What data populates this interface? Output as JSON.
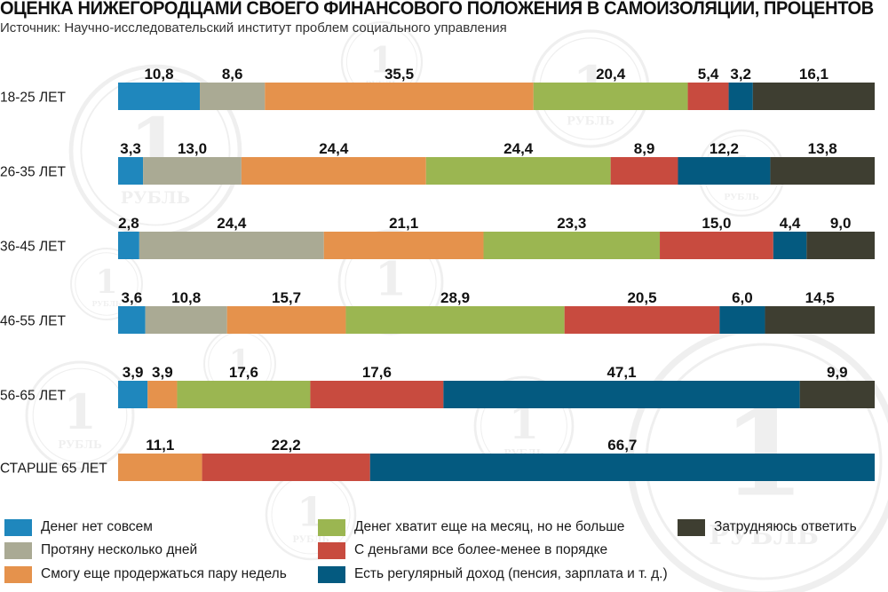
{
  "title": "ОЦЕНКА НИЖЕГОРОДЦАМИ СВОЕГО ФИНАНСОВОГО ПОЛОЖЕНИЯ В САМОИЗОЛЯЦИИ, ПРОЦЕНТОВ",
  "subtitle": "Источник: Научно-исследовательский институт проблем социального управления",
  "watermark": {
    "numeral": "1",
    "word": "РУБЛЬ"
  },
  "chart_data": {
    "type": "bar",
    "orientation": "horizontal",
    "stacked": true,
    "categories": [
      "18-25 ЛЕТ",
      "26-35 ЛЕТ",
      "36-45 ЛЕТ",
      "46-55 ЛЕТ",
      "56-65 ЛЕТ",
      "СТАРШЕ 65 ЛЕТ"
    ],
    "series": [
      {
        "name": "Денег нет совсем",
        "color": "#1f87bd",
        "values": [
          10.8,
          3.3,
          2.8,
          3.6,
          3.9,
          0
        ]
      },
      {
        "name": "Протяну несколько дней",
        "color": "#aaaa94",
        "values": [
          8.6,
          13.0,
          24.4,
          10.8,
          0,
          0
        ]
      },
      {
        "name": "Смогу еще продержаться пару недель",
        "color": "#e5924c",
        "values": [
          35.5,
          24.4,
          21.1,
          15.7,
          3.9,
          11.1
        ]
      },
      {
        "name": "Денег хватит еще на месяц, но не больше",
        "color": "#9bb651",
        "values": [
          20.4,
          24.4,
          23.3,
          28.9,
          17.6,
          0
        ]
      },
      {
        "name": "С деньгами все более-менее в порядке",
        "color": "#c84b3f",
        "values": [
          5.4,
          8.9,
          15.0,
          20.5,
          17.6,
          22.2
        ]
      },
      {
        "name": "Есть регулярный доход (пенсия, зарплата и т. д.)",
        "color": "#045a80",
        "values": [
          3.2,
          12.2,
          4.4,
          6.0,
          47.1,
          66.7
        ]
      },
      {
        "name": "Затрудняюсь ответить",
        "color": "#3e3e31",
        "values": [
          16.1,
          13.8,
          9.0,
          14.5,
          9.9,
          0
        ]
      }
    ],
    "labels": [
      [
        "10,8",
        "8,6",
        "35,5",
        "20,4",
        "5,4",
        "3,2",
        "16,1"
      ],
      [
        "3,3",
        "13,0",
        "24,4",
        "24,4",
        "8,9",
        "12,2",
        "13,8"
      ],
      [
        "2,8",
        "24,4",
        "21,1",
        "23,3",
        "15,0",
        "4,4",
        "9,0"
      ],
      [
        "3,6",
        "10,8",
        "15,7",
        "28,9",
        "20,5",
        "6,0",
        "14,5"
      ],
      [
        "3,9",
        "",
        "3,9",
        "17,6",
        "17,6",
        "47,1",
        "9,9"
      ],
      [
        "",
        "",
        "11,1",
        "",
        "22,2",
        "66,7",
        ""
      ]
    ],
    "xlim": [
      0,
      100
    ],
    "grid": false,
    "legend_position": "bottom"
  }
}
